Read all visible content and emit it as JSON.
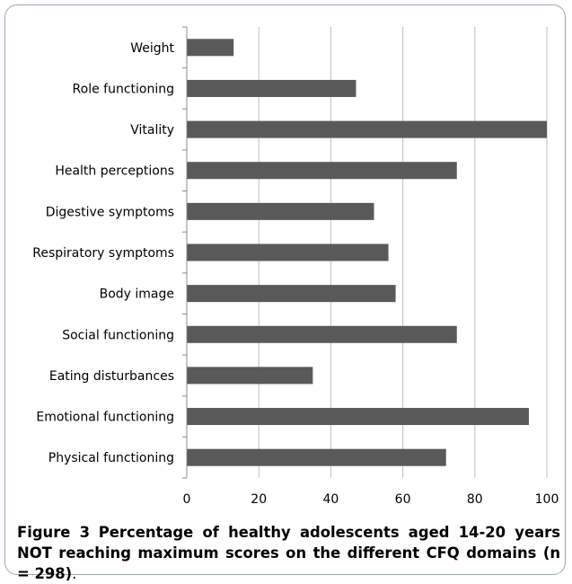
{
  "figure": {
    "label": "Figure 3",
    "title": "Percentage of healthy adolescents aged 14-20 years NOT reaching maximum scores on the different CFQ domains (n = 298)",
    "end": "."
  },
  "chart_data": {
    "type": "bar",
    "orientation": "horizontal",
    "categories": [
      "Weight",
      "Role functioning",
      "Vitality",
      "Health perceptions",
      "Digestive symptoms",
      "Respiratory symptoms",
      "Body image",
      "Social functioning",
      "Eating disturbances",
      "Emotional functioning",
      "Physical functioning"
    ],
    "values": [
      13,
      47,
      100,
      75,
      52,
      56,
      58,
      75,
      35,
      95,
      72
    ],
    "xlim": [
      0,
      100
    ],
    "xticks": [
      "0",
      "20",
      "40",
      "60",
      "80",
      "100"
    ],
    "grid": true,
    "bar_color": "#595959",
    "title": "",
    "xlabel": "",
    "ylabel": ""
  }
}
